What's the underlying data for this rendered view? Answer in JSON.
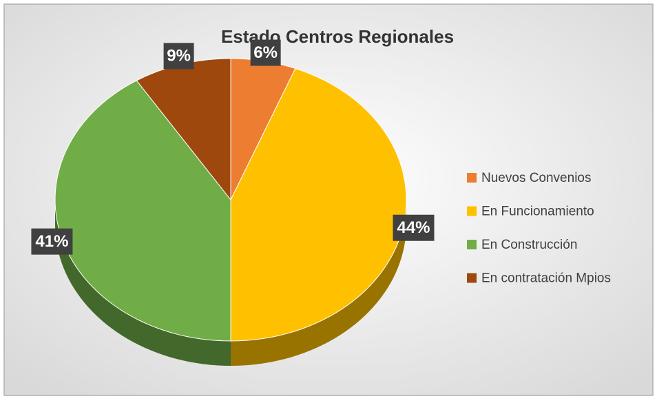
{
  "chart_data": {
    "type": "pie",
    "title": "Estado Centros Regionales",
    "categories": [
      "Nuevos Convenios",
      "En Funcionamiento",
      "En Construcción",
      "En contratación Mpios"
    ],
    "values": [
      6,
      44,
      41,
      9
    ],
    "value_labels": [
      "6%",
      "44%",
      "41%",
      "9%"
    ],
    "colors": [
      "#ED7D31",
      "#FFC000",
      "#70AD47",
      "#9E480E"
    ],
    "legend": "right"
  }
}
